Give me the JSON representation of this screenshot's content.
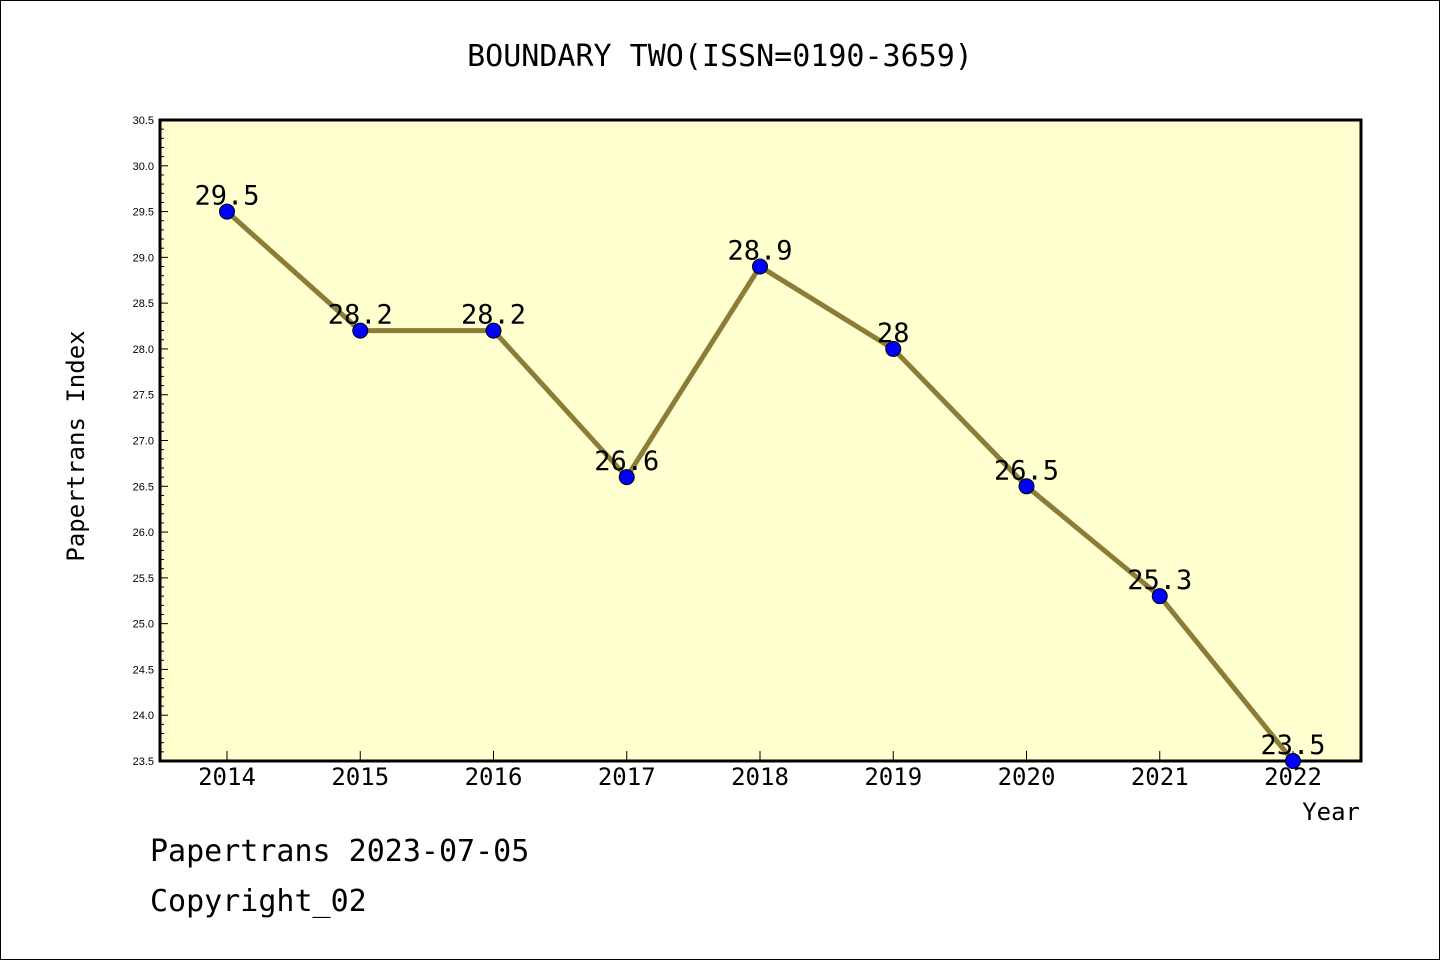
{
  "chart_data": {
    "type": "line",
    "title": "BOUNDARY TWO(ISSN=0190-3659)",
    "xlabel": "Year",
    "ylabel": "Papertrans Index",
    "categories": [
      "2014",
      "2015",
      "2016",
      "2017",
      "2018",
      "2019",
      "2020",
      "2021",
      "2022"
    ],
    "series": [
      {
        "values": [
          29.5,
          28.2,
          28.2,
          26.6,
          28.9,
          28.0,
          26.5,
          25.3,
          23.5
        ],
        "labels": [
          "29.5",
          "28.2",
          "28.2",
          "26.6",
          "28.9",
          "28",
          "26.5",
          "25.3",
          "23.5"
        ]
      }
    ],
    "ylim": [
      23.5,
      30.5
    ],
    "yticks": [
      "23.5",
      "24.0",
      "24.5",
      "25.0",
      "25.5",
      "26.0",
      "26.5",
      "27.0",
      "27.5",
      "28.0",
      "28.5",
      "29.0",
      "29.5",
      "30.0",
      "30.5"
    ],
    "grid": false,
    "colors": {
      "plot_background": "#ffffd0",
      "line": "#8b7d35",
      "marker": "#0000ff"
    }
  },
  "footer": {
    "line1": "Papertrans 2023-07-05",
    "line2": "Copyright_02"
  }
}
